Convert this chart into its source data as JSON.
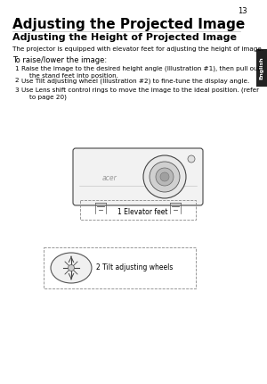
{
  "page_number": "13",
  "title1": "Adjusting the Projected Image",
  "title2": "Adjusting the Height of Projected Image",
  "body_text": "The projector is equipped with elevator feet for adjusting the height of image.",
  "subheading": "To raise/lower the image:",
  "steps": [
    "Raise the image to the desired height angle (Illustration #1), then pull out\nthe stand feet into position.",
    "Use Tilt adjusting wheel (Illustration #2) to fine-tune the display angle.",
    "Use Lens shift control rings to move the image to the ideal position. (refer\nto page 20)"
  ],
  "label1": "1 Elevator feet",
  "label2": "2 Tilt adjusting wheels",
  "tab_text": "English",
  "bg_color": "#ffffff",
  "text_color": "#000000",
  "tab_bg": "#222222",
  "tab_text_color": "#ffffff"
}
